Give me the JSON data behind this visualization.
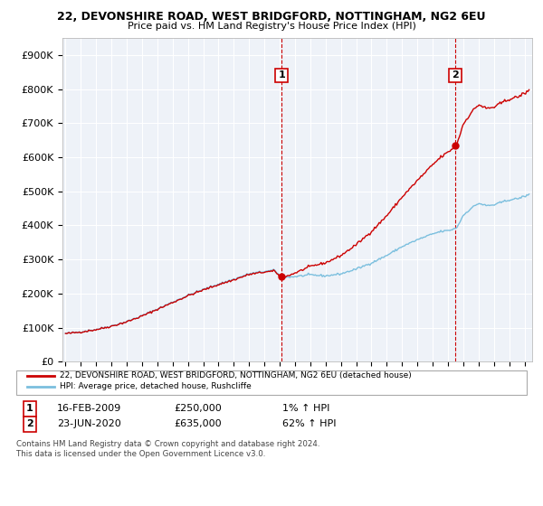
{
  "title1": "22, DEVONSHIRE ROAD, WEST BRIDGFORD, NOTTINGHAM, NG2 6EU",
  "title2": "Price paid vs. HM Land Registry's House Price Index (HPI)",
  "ylabel_ticks": [
    "£0",
    "£100K",
    "£200K",
    "£300K",
    "£400K",
    "£500K",
    "£600K",
    "£700K",
    "£800K",
    "£900K"
  ],
  "ytick_values": [
    0,
    100000,
    200000,
    300000,
    400000,
    500000,
    600000,
    700000,
    800000,
    900000
  ],
  "ylim": [
    0,
    950000
  ],
  "xlim_start": 1994.8,
  "xlim_end": 2025.5,
  "legend_line1": "22, DEVONSHIRE ROAD, WEST BRIDGFORD, NOTTINGHAM, NG2 6EU (detached house)",
  "legend_line2": "HPI: Average price, detached house, Rushcliffe",
  "sale1_date": "16-FEB-2009",
  "sale1_price": "£250,000",
  "sale1_hpi": "1% ↑ HPI",
  "sale1_year": 2009.12,
  "sale1_value": 250000,
  "sale2_date": "23-JUN-2020",
  "sale2_price": "£635,000",
  "sale2_hpi": "62% ↑ HPI",
  "sale2_year": 2020.47,
  "sale2_value": 635000,
  "hpi_color": "#7bbfde",
  "price_color": "#cc0000",
  "vline_color": "#cc0000",
  "plot_bg": "#eef2f8",
  "grid_color": "#ffffff",
  "footer": "Contains HM Land Registry data © Crown copyright and database right 2024.\nThis data is licensed under the Open Government Licence v3.0."
}
